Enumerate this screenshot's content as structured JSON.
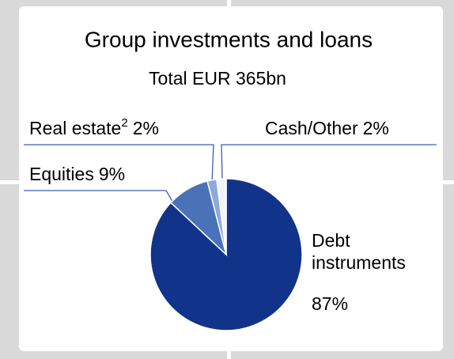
{
  "chart_data": {
    "type": "pie",
    "title": "Group investments and loans",
    "subtitle": "Total EUR 365bn",
    "categories": [
      "Debt instruments",
      "Equities",
      "Real estate",
      "Cash/Other"
    ],
    "category_footnotes": [
      null,
      null,
      "2",
      null
    ],
    "values": [
      87,
      9,
      2,
      2
    ],
    "value_labels": [
      "87%",
      "9%",
      "2%",
      "2%"
    ],
    "colors": [
      "#12338a",
      "#4a72b8",
      "#8eaadb",
      "#f2f4fa"
    ]
  }
}
